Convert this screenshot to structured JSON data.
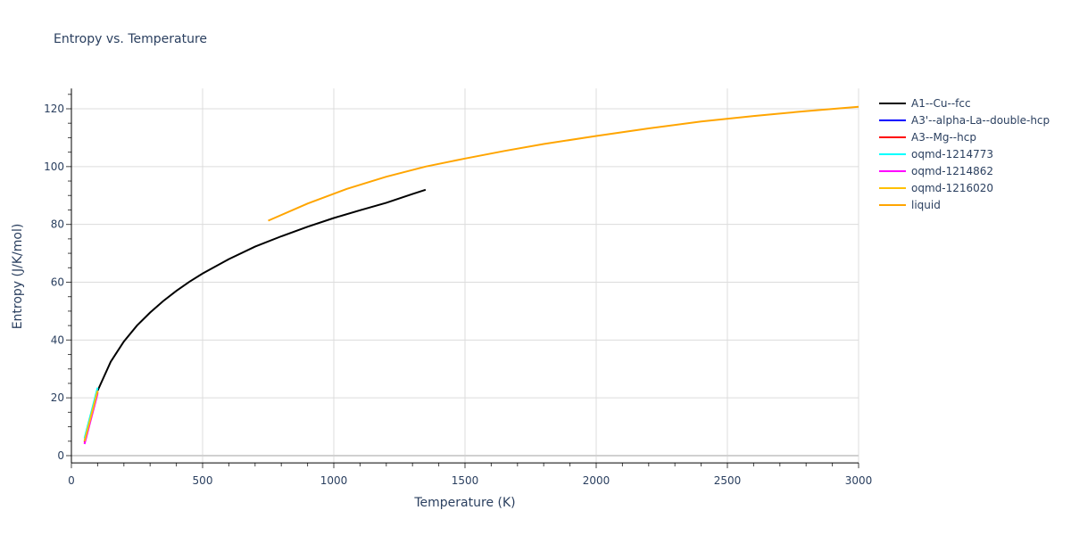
{
  "chart_data": {
    "type": "line",
    "title": "Entropy vs. Temperature",
    "xlabel": "Temperature (K)",
    "ylabel": "Entropy (J/K/mol)",
    "xlim": [
      0,
      3000
    ],
    "ylim": [
      -2.5,
      127
    ],
    "x_ticks": [
      0,
      500,
      1000,
      1500,
      2000,
      2500,
      3000
    ],
    "y_ticks": [
      0,
      20,
      40,
      60,
      80,
      100,
      120
    ],
    "grid": true,
    "legend_position": "right",
    "series": [
      {
        "name": "A1--Cu--fcc",
        "color": "#000000",
        "x": [
          100,
          150,
          200,
          250,
          300,
          350,
          400,
          450,
          500,
          600,
          700,
          800,
          900,
          1000,
          1100,
          1200,
          1300,
          1350
        ],
        "y": [
          22.5,
          32.5,
          39.5,
          45.0,
          49.5,
          53.5,
          57.0,
          60.2,
          63.0,
          68.0,
          72.3,
          75.9,
          79.2,
          82.2,
          84.9,
          87.5,
          90.5,
          92.0
        ]
      },
      {
        "name": "A3'--alpha-La--double-hcp",
        "color": "#0000ff",
        "x": [
          50,
          100
        ],
        "y": [
          5.0,
          22.5
        ]
      },
      {
        "name": "A3--Mg--hcp",
        "color": "#ff0000",
        "x": [
          50,
          100
        ],
        "y": [
          4.5,
          22.0
        ]
      },
      {
        "name": "oqmd-1214773",
        "color": "#00ffff",
        "x": [
          50,
          100
        ],
        "y": [
          6.0,
          23.5
        ]
      },
      {
        "name": "oqmd-1214862",
        "color": "#ff00ff",
        "x": [
          50,
          100
        ],
        "y": [
          4.0,
          21.5
        ]
      },
      {
        "name": "oqmd-1216020",
        "color": "#ffc000",
        "x": [
          50,
          100
        ],
        "y": [
          5.0,
          22.5
        ]
      },
      {
        "name": "liquid",
        "color": "#ffa500",
        "x": [
          750,
          900,
          1050,
          1200,
          1350,
          1500,
          1650,
          1800,
          2000,
          2200,
          2400,
          2600,
          2800,
          3000
        ],
        "y": [
          81.3,
          87.2,
          92.3,
          96.5,
          100.0,
          102.8,
          105.4,
          107.8,
          110.6,
          113.2,
          115.6,
          117.5,
          119.2,
          120.7
        ]
      }
    ]
  }
}
